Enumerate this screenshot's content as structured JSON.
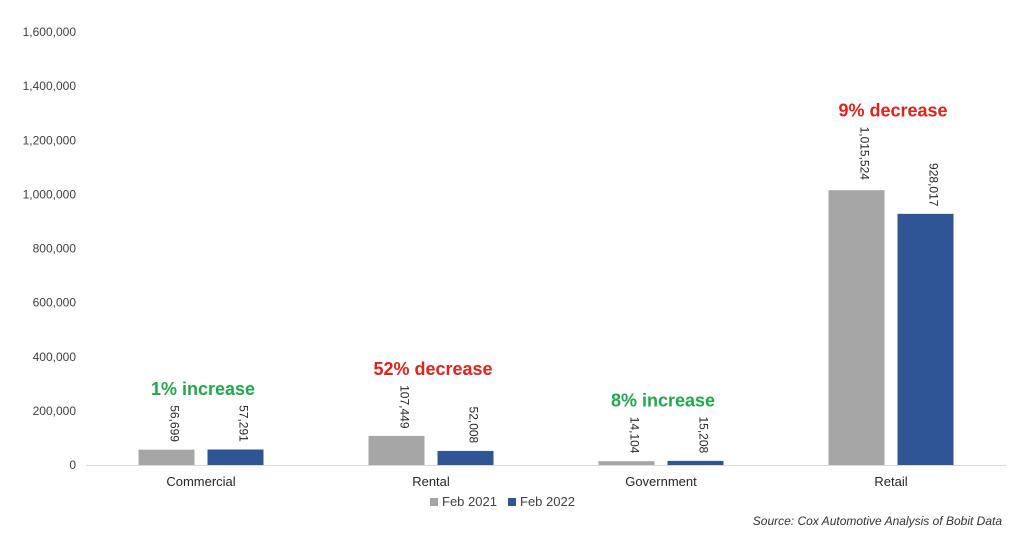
{
  "chart_data": {
    "type": "bar",
    "categories": [
      "Commercial",
      "Rental",
      "Government",
      "Retail"
    ],
    "series": [
      {
        "name": "Feb 2021",
        "values": [
          56699,
          107449,
          14104,
          1015524
        ],
        "labels": [
          "56,699",
          "107,449",
          "14,104",
          "1,015,524"
        ]
      },
      {
        "name": "Feb 2022",
        "values": [
          57291,
          52008,
          15208,
          928017
        ],
        "labels": [
          "57,291",
          "52,008",
          "15,208",
          "928,017"
        ]
      }
    ],
    "annotations": [
      {
        "category": "Commercial",
        "text": "1% increase",
        "tone": "increase"
      },
      {
        "category": "Rental",
        "text": "52% decrease",
        "tone": "decrease"
      },
      {
        "category": "Government",
        "text": "8% increase",
        "tone": "increase"
      },
      {
        "category": "Retail",
        "text": "9% decrease",
        "tone": "decrease"
      }
    ],
    "ylim": [
      0,
      1600000
    ],
    "yticks": [
      0,
      200000,
      400000,
      600000,
      800000,
      1000000,
      1200000,
      1400000,
      1600000
    ],
    "ytick_labels": [
      "0",
      "200,000",
      "400,000",
      "600,000",
      "800,000",
      "1,000,000",
      "1,200,000",
      "1,400,000",
      "1,600,000"
    ],
    "grid": false,
    "legend_position": "bottom",
    "colors": {
      "Feb 2021": "#a6a6a6",
      "Feb 2022": "#2f5597",
      "increase": "#1fa94a",
      "decrease": "#e32219"
    }
  },
  "source": "Source: Cox Automotive Analysis of Bobit Data"
}
